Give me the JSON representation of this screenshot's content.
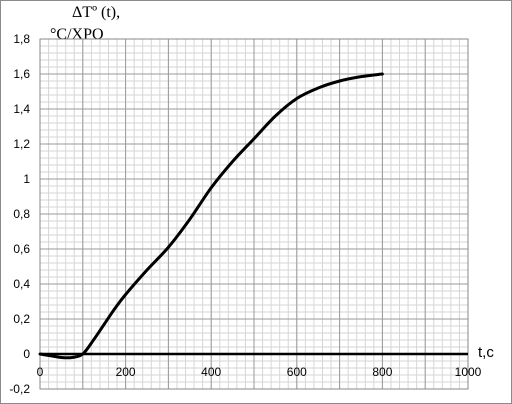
{
  "chart_data": {
    "type": "line",
    "title": "",
    "ylabel_line1": "ΔTº (t),",
    "ylabel_line2": "°C/XPO",
    "xlabel": "t,c",
    "xlim": [
      0,
      1000
    ],
    "ylim": [
      -0.2,
      1.8
    ],
    "x_ticks": [
      0,
      200,
      400,
      600,
      800,
      1000
    ],
    "y_ticks": [
      "1,8",
      "1,6",
      "1,4",
      "1,2",
      "1",
      "0,8",
      "0,6",
      "0,4",
      "0,2",
      "0",
      "-0,2"
    ],
    "y_tick_values": [
      1.8,
      1.6,
      1.4,
      1.2,
      1.0,
      0.8,
      0.6,
      0.4,
      0.2,
      0,
      -0.2
    ],
    "grid": true,
    "series": [
      {
        "color": "#000000",
        "x": [
          0,
          25,
          50,
          75,
          100,
          125,
          150,
          175,
          200,
          250,
          300,
          350,
          400,
          450,
          500,
          550,
          600,
          650,
          700,
          750,
          800
        ],
        "y": [
          0.0,
          -0.01,
          -0.02,
          -0.02,
          0.0,
          0.08,
          0.17,
          0.26,
          0.34,
          0.48,
          0.61,
          0.77,
          0.95,
          1.1,
          1.23,
          1.36,
          1.46,
          1.52,
          1.56,
          1.585,
          1.6
        ]
      }
    ],
    "zero_line": true
  }
}
